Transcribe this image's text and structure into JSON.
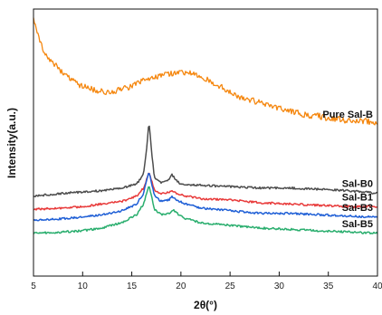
{
  "chart_data": {
    "type": "line",
    "xlabel": "2θ(°)",
    "ylabel": "Intensity(a.u.)",
    "xlim": [
      5,
      40
    ],
    "xticks": [
      5,
      10,
      15,
      20,
      25,
      30,
      35,
      40
    ],
    "y_ticks_shown": false,
    "grid": false,
    "legend": "labels placed at right end of each curve",
    "series": [
      {
        "name": "Pure Sal-B",
        "color": "#F5870F",
        "noise": 1.0,
        "points": [
          [
            5,
            0.97
          ],
          [
            5.5,
            0.9
          ],
          [
            6,
            0.84
          ],
          [
            7,
            0.8
          ],
          [
            8,
            0.76
          ],
          [
            9,
            0.73
          ],
          [
            10,
            0.71
          ],
          [
            11,
            0.7
          ],
          [
            12,
            0.69
          ],
          [
            13,
            0.69
          ],
          [
            14,
            0.7
          ],
          [
            15,
            0.71
          ],
          [
            16,
            0.73
          ],
          [
            17,
            0.74
          ],
          [
            18,
            0.75
          ],
          [
            19,
            0.76
          ],
          [
            20,
            0.76
          ],
          [
            21,
            0.76
          ],
          [
            22,
            0.75
          ],
          [
            23,
            0.73
          ],
          [
            24,
            0.71
          ],
          [
            25,
            0.69
          ],
          [
            26,
            0.67
          ],
          [
            27,
            0.66
          ],
          [
            28,
            0.65
          ],
          [
            29,
            0.64
          ],
          [
            30,
            0.63
          ],
          [
            31,
            0.62
          ],
          [
            32,
            0.61
          ],
          [
            33,
            0.6
          ],
          [
            34,
            0.6
          ],
          [
            35,
            0.59
          ],
          [
            36,
            0.59
          ],
          [
            37,
            0.58
          ],
          [
            38,
            0.58
          ],
          [
            39,
            0.58
          ],
          [
            40,
            0.57
          ]
        ]
      },
      {
        "name": "Sal-B0",
        "color": "#4D4D4D",
        "noise": 0.35,
        "points": [
          [
            5,
            0.3
          ],
          [
            8,
            0.31
          ],
          [
            10,
            0.315
          ],
          [
            12,
            0.32
          ],
          [
            14,
            0.33
          ],
          [
            15.5,
            0.345
          ],
          [
            16.2,
            0.38
          ],
          [
            16.5,
            0.47
          ],
          [
            16.75,
            0.58
          ],
          [
            17.0,
            0.47
          ],
          [
            17.3,
            0.37
          ],
          [
            18,
            0.35
          ],
          [
            18.7,
            0.36
          ],
          [
            19.1,
            0.38
          ],
          [
            19.5,
            0.36
          ],
          [
            20,
            0.345
          ],
          [
            22,
            0.34
          ],
          [
            25,
            0.335
          ],
          [
            28,
            0.33
          ],
          [
            31,
            0.33
          ],
          [
            34,
            0.325
          ],
          [
            37,
            0.32
          ],
          [
            40,
            0.31
          ]
        ]
      },
      {
        "name": "Sal-B1",
        "color": "#E83A3A",
        "noise": 0.35,
        "points": [
          [
            5,
            0.25
          ],
          [
            8,
            0.255
          ],
          [
            10,
            0.26
          ],
          [
            12,
            0.27
          ],
          [
            14,
            0.28
          ],
          [
            15.5,
            0.3
          ],
          [
            16.2,
            0.33
          ],
          [
            16.5,
            0.36
          ],
          [
            16.75,
            0.39
          ],
          [
            17.0,
            0.36
          ],
          [
            17.3,
            0.32
          ],
          [
            18,
            0.31
          ],
          [
            18.8,
            0.315
          ],
          [
            19.2,
            0.32
          ],
          [
            19.6,
            0.31
          ],
          [
            20.5,
            0.3
          ],
          [
            22,
            0.29
          ],
          [
            25,
            0.285
          ],
          [
            28,
            0.275
          ],
          [
            31,
            0.27
          ],
          [
            34,
            0.265
          ],
          [
            37,
            0.26
          ],
          [
            40,
            0.26
          ]
        ]
      },
      {
        "name": "Sal-B3",
        "color": "#1F5FD6",
        "noise": 0.35,
        "points": [
          [
            5,
            0.21
          ],
          [
            8,
            0.215
          ],
          [
            10,
            0.22
          ],
          [
            12,
            0.23
          ],
          [
            14,
            0.245
          ],
          [
            15.5,
            0.27
          ],
          [
            16.2,
            0.31
          ],
          [
            16.5,
            0.36
          ],
          [
            16.75,
            0.39
          ],
          [
            17.0,
            0.35
          ],
          [
            17.3,
            0.3
          ],
          [
            18,
            0.28
          ],
          [
            18.8,
            0.285
          ],
          [
            19.1,
            0.3
          ],
          [
            19.5,
            0.285
          ],
          [
            20.5,
            0.27
          ],
          [
            22,
            0.255
          ],
          [
            25,
            0.245
          ],
          [
            28,
            0.235
          ],
          [
            31,
            0.235
          ],
          [
            34,
            0.23
          ],
          [
            37,
            0.225
          ],
          [
            40,
            0.22
          ]
        ]
      },
      {
        "name": "Sal-B5",
        "color": "#2AAE6E",
        "noise": 0.35,
        "points": [
          [
            5,
            0.16
          ],
          [
            8,
            0.165
          ],
          [
            10,
            0.17
          ],
          [
            12,
            0.18
          ],
          [
            14,
            0.2
          ],
          [
            15.5,
            0.23
          ],
          [
            16.2,
            0.27
          ],
          [
            16.5,
            0.31
          ],
          [
            16.75,
            0.34
          ],
          [
            17.0,
            0.3
          ],
          [
            17.3,
            0.25
          ],
          [
            18,
            0.23
          ],
          [
            18.8,
            0.235
          ],
          [
            19.2,
            0.25
          ],
          [
            19.6,
            0.235
          ],
          [
            20.5,
            0.215
          ],
          [
            22,
            0.2
          ],
          [
            25,
            0.19
          ],
          [
            28,
            0.18
          ],
          [
            31,
            0.175
          ],
          [
            34,
            0.17
          ],
          [
            37,
            0.165
          ],
          [
            40,
            0.16
          ]
        ]
      }
    ]
  }
}
